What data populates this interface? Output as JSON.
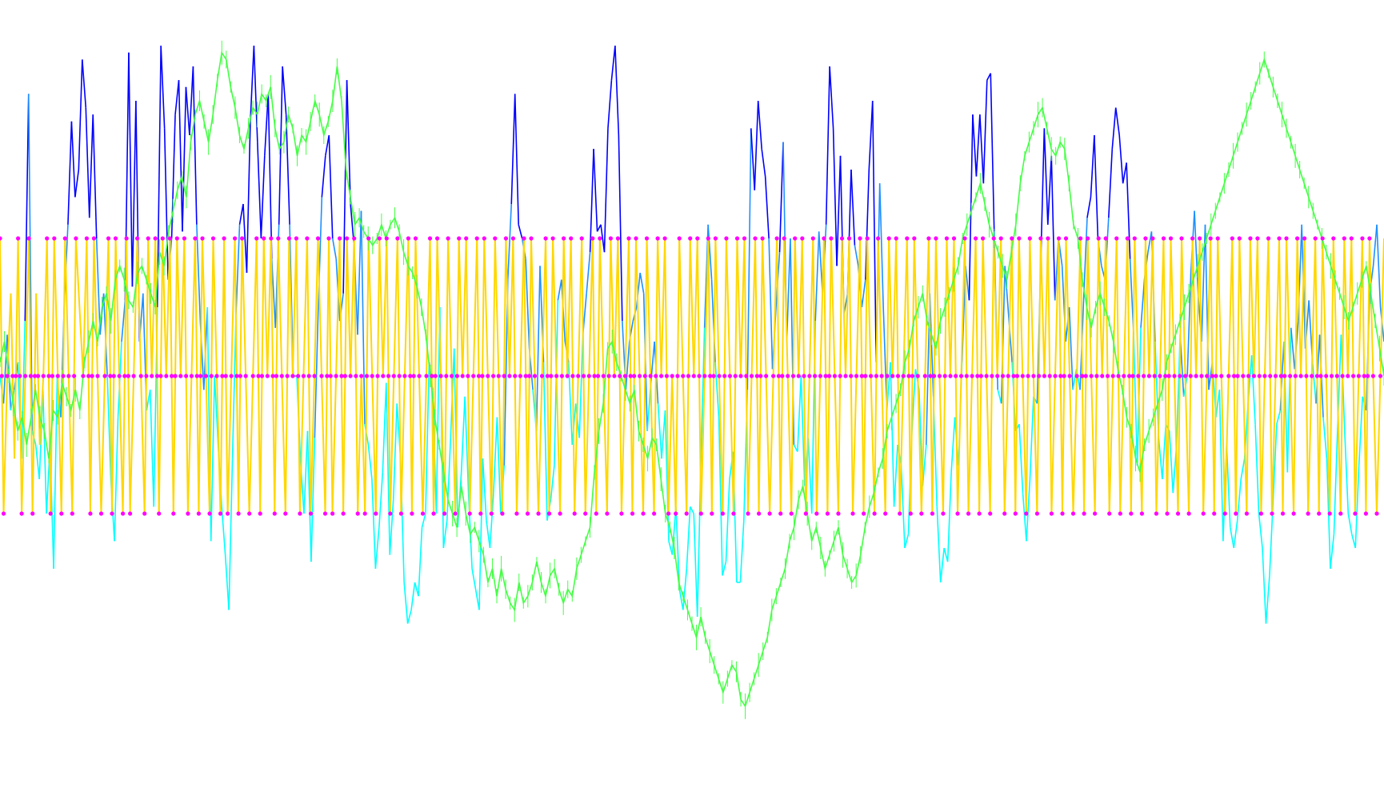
{
  "chart_data": {
    "type": "line",
    "title": "",
    "xlabel": "",
    "ylabel": "",
    "grid": false,
    "legend": "none",
    "ylim": [
      0,
      100
    ],
    "reference_levels": [
      70,
      50,
      30
    ],
    "colors": {
      "indicator_above": "#0000ff",
      "indicator_mid": "#1e90ff",
      "indicator_below": "#00ffff",
      "signal": "#ffd700",
      "trend": "#44ff44",
      "marker": "#ff00ff"
    },
    "series": [
      {
        "role": "indicator",
        "values": [
          50,
          46,
          56,
          45,
          48,
          52,
          38,
          58,
          91,
          42,
          40,
          35,
          48,
          30,
          40,
          22,
          50,
          44,
          61,
          72,
          87,
          76,
          80,
          96,
          89,
          73,
          88,
          70,
          56,
          62,
          50,
          35,
          26,
          44,
          55,
          61,
          97,
          63,
          90,
          55,
          62,
          45,
          48,
          31,
          60,
          98,
          86,
          64,
          70,
          88,
          93,
          71,
          92,
          85,
          95,
          72,
          58,
          48,
          60,
          26,
          50,
          40,
          31,
          24,
          16,
          38,
          59,
          72,
          75,
          65,
          87,
          98,
          84,
          70,
          82,
          91,
          67,
          57,
          72,
          95,
          88,
          72,
          50,
          50,
          38,
          30,
          42,
          23,
          41,
          60,
          76,
          82,
          85,
          70,
          67,
          58,
          62,
          93,
          75,
          69,
          56,
          74,
          43,
          40,
          35,
          22,
          28,
          36,
          49,
          24,
          32,
          46,
          38,
          20,
          14,
          16,
          20,
          18,
          28,
          30,
          52,
          48,
          30,
          60,
          25,
          29,
          41,
          54,
          28,
          36,
          47,
          33,
          22,
          19,
          16,
          38,
          29,
          25,
          33,
          44,
          30,
          37,
          64,
          75,
          91,
          72,
          70,
          67,
          54,
          48,
          42,
          66,
          52,
          29,
          32,
          37,
          61,
          64,
          55,
          52,
          40,
          46,
          41,
          56,
          62,
          68,
          83,
          71,
          72,
          68,
          86,
          93,
          98,
          85,
          58,
          48,
          55,
          58,
          60,
          65,
          62,
          42,
          49,
          55,
          46,
          38,
          45,
          26,
          24,
          31,
          19,
          16,
          22,
          31,
          30,
          15,
          38,
          57,
          72,
          64,
          52,
          44,
          21,
          23,
          35,
          39,
          20,
          20,
          29,
          48,
          86,
          77,
          90,
          83,
          79,
          70,
          51,
          60,
          68,
          84,
          55,
          70,
          40,
          39,
          50,
          34,
          41,
          30,
          58,
          71,
          62,
          72,
          95,
          86,
          66,
          82,
          59,
          62,
          80,
          69,
          66,
          60,
          64,
          80,
          90,
          52,
          78,
          60,
          45,
          52,
          31,
          40,
          37,
          25,
          27,
          42,
          51,
          48,
          34,
          40,
          62,
          47,
          31,
          20,
          25,
          23,
          36,
          44,
          37,
          52,
          66,
          61,
          88,
          79,
          88,
          78,
          93,
          94,
          71,
          48,
          46,
          66,
          59,
          52,
          42,
          43,
          33,
          26,
          35,
          47,
          46,
          66,
          86,
          72,
          82,
          61,
          70,
          66,
          55,
          60,
          48,
          51,
          48,
          61,
          73,
          76,
          85,
          70,
          66,
          64,
          73,
          83,
          89,
          85,
          78,
          81,
          67,
          56,
          37,
          57,
          64,
          68,
          71,
          55,
          41,
          35,
          43,
          42,
          33,
          40,
          56,
          47,
          50,
          65,
          74,
          62,
          55,
          72,
          48,
          52,
          44,
          48,
          26,
          40,
          28,
          25,
          29,
          35,
          38,
          46,
          53,
          43,
          30,
          25,
          14,
          21,
          32,
          43,
          45,
          55,
          36,
          57,
          51,
          58,
          72,
          54,
          61,
          52,
          46,
          56,
          44,
          38,
          22,
          27,
          42,
          56,
          42,
          30,
          27,
          25,
          37,
          47,
          45,
          62,
          66,
          72,
          60,
          55
        ]
      },
      {
        "role": "signal",
        "values": [
          70,
          30,
          50,
          62,
          38,
          70,
          30,
          50,
          70,
          30,
          62,
          40,
          50,
          70,
          30,
          70,
          50,
          30,
          70,
          50,
          30,
          70,
          60,
          50,
          70,
          30,
          70,
          50,
          30,
          50,
          70,
          30,
          70,
          50,
          30,
          70,
          30,
          50,
          70,
          50,
          30,
          70,
          50,
          70,
          30,
          70,
          50,
          70,
          30,
          70,
          50,
          70,
          30,
          50,
          70,
          30,
          70,
          50,
          30,
          70,
          50,
          30,
          70,
          30,
          50,
          70,
          30,
          70,
          50,
          30,
          50,
          70,
          30,
          70,
          50,
          70,
          30,
          70,
          50,
          30,
          70,
          50,
          70,
          30,
          50,
          70,
          30,
          50,
          70,
          50,
          30,
          70,
          30,
          50,
          70,
          30,
          70,
          50,
          70,
          30,
          50,
          30,
          70,
          50,
          30,
          70,
          50,
          70,
          30,
          50,
          70,
          30,
          50,
          70,
          30,
          70,
          50,
          30,
          50,
          70,
          30,
          70,
          50,
          30,
          70,
          50,
          30,
          70,
          50,
          70,
          30,
          50,
          70,
          30,
          70,
          50,
          30,
          70,
          50,
          30,
          70,
          50,
          70,
          30,
          50,
          70,
          30,
          70,
          50,
          30,
          50,
          70,
          30,
          70,
          50,
          30,
          70,
          50,
          70,
          30,
          50,
          70,
          30,
          50,
          70,
          30,
          70,
          50,
          30,
          70,
          50,
          70,
          30,
          50,
          70,
          30,
          70,
          50,
          30,
          70,
          50,
          30,
          70,
          50,
          70,
          30,
          50,
          30,
          70,
          50,
          30,
          70,
          50,
          70,
          30,
          50,
          70,
          30,
          70,
          50,
          30,
          70,
          50,
          30,
          70,
          50,
          70,
          30,
          50,
          70,
          30,
          70,
          50,
          30,
          50,
          70,
          30,
          70,
          50,
          30,
          70,
          50,
          70,
          30,
          50,
          70,
          30,
          50,
          70,
          30,
          70,
          50,
          30,
          70,
          50,
          70,
          30,
          50,
          70,
          30,
          70,
          50,
          30,
          70,
          50,
          30,
          70,
          50,
          70,
          30,
          50,
          70,
          30,
          70,
          50,
          30,
          50,
          70,
          30,
          70,
          50,
          30,
          70,
          50,
          70,
          30,
          50,
          70,
          30,
          50,
          70,
          30,
          70,
          50,
          30,
          70,
          50,
          70,
          30,
          50,
          70,
          30,
          70,
          50,
          30,
          70,
          50,
          30,
          70,
          50,
          70,
          30,
          50,
          70,
          30,
          70,
          50,
          30,
          50,
          70,
          30,
          70,
          50,
          30,
          70,
          50,
          70,
          30,
          50,
          70,
          30,
          50,
          70,
          30,
          70,
          50,
          30,
          70,
          50,
          70,
          30,
          50,
          70,
          30,
          70,
          50,
          30,
          70,
          50,
          30,
          70,
          50,
          70,
          30,
          50,
          70,
          30,
          70,
          50,
          30,
          50,
          70,
          30,
          70,
          50,
          30,
          70,
          50,
          70,
          30,
          50,
          70,
          30,
          50,
          70,
          30,
          70,
          50,
          30,
          70,
          50,
          70,
          30,
          50,
          70,
          30,
          70,
          50,
          30,
          70,
          50,
          30,
          70,
          50,
          70,
          30,
          50,
          70,
          30,
          70,
          50,
          30,
          50,
          70
        ]
      },
      {
        "role": "trend",
        "values": [
          52,
          55,
          50,
          46,
          42,
          44,
          40,
          44,
          48,
          44,
          42,
          38,
          45,
          44,
          49,
          47,
          45,
          48,
          45,
          52,
          55,
          58,
          55,
          60,
          62,
          58,
          64,
          66,
          64,
          61,
          60,
          65,
          66,
          64,
          62,
          60,
          68,
          66,
          71,
          74,
          77,
          79,
          76,
          84,
          88,
          90,
          87,
          84,
          88,
          93,
          97,
          96,
          92,
          89,
          85,
          83,
          86,
          89,
          88,
          91,
          90,
          92,
          86,
          83,
          84,
          88,
          86,
          82,
          85,
          84,
          87,
          90,
          88,
          85,
          87,
          90,
          95,
          90,
          80,
          76,
          72,
          73,
          71,
          70,
          69,
          70,
          72,
          70,
          72,
          73,
          71,
          68,
          66,
          65,
          63,
          60,
          56,
          50,
          44,
          40,
          36,
          32,
          30,
          28,
          34,
          30,
          27,
          28,
          26,
          24,
          20,
          22,
          18,
          22,
          19,
          17,
          16,
          20,
          17,
          18,
          20,
          23,
          20,
          18,
          21,
          22,
          19,
          17,
          19,
          18,
          22,
          24,
          26,
          28,
          36,
          42,
          46,
          54,
          55,
          52,
          50,
          48,
          46,
          48,
          42,
          40,
          38,
          41,
          40,
          35,
          30,
          28,
          25,
          20,
          18,
          16,
          14,
          12,
          15,
          12,
          10,
          8,
          6,
          4,
          6,
          8,
          7,
          3,
          2,
          4,
          6,
          8,
          10,
          12,
          16,
          18,
          20,
          22,
          26,
          28,
          32,
          34,
          30,
          26,
          28,
          25,
          22,
          24,
          26,
          28,
          24,
          22,
          20,
          21,
          24,
          28,
          31,
          33,
          36,
          38,
          42,
          44,
          46,
          48,
          52,
          54,
          58,
          60,
          62,
          58,
          56,
          54,
          58,
          60,
          62,
          64,
          66,
          70,
          72,
          74,
          76,
          78,
          75,
          72,
          70,
          68,
          66,
          64,
          68,
          72,
          78,
          82,
          84,
          86,
          88,
          89,
          86,
          83,
          82,
          84,
          83,
          78,
          72,
          70,
          64,
          60,
          57,
          60,
          62,
          60,
          58,
          55,
          51,
          48,
          44,
          42,
          38,
          36,
          40,
          42,
          44,
          46,
          48,
          52,
          54,
          56,
          58,
          60,
          62,
          64,
          66,
          68,
          70,
          72,
          74,
          76,
          78,
          80,
          82,
          84,
          86,
          88,
          90,
          92,
          94,
          96,
          94,
          92,
          90,
          88,
          86,
          84,
          82,
          80,
          78,
          76,
          74,
          72,
          70,
          68,
          66,
          64,
          62,
          60,
          58,
          60,
          62,
          64,
          66,
          62,
          58,
          54,
          50
        ]
      }
    ]
  }
}
